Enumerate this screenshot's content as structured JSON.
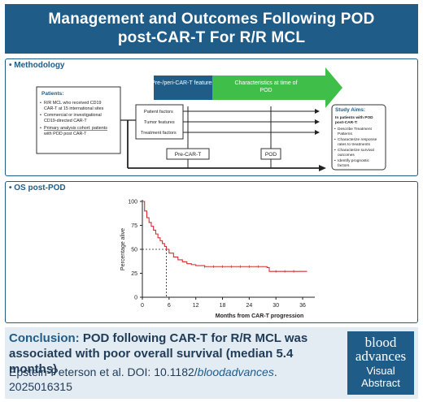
{
  "header": {
    "line1": "Management and Outcomes Following POD",
    "line2": "post-CAR-T For R/R MCL"
  },
  "methodology": {
    "title": "• Methodology",
    "patients_title": "Patients:",
    "patients_items": [
      "R/R MCL who received CD19",
      "CAR-T at 15 international sites",
      "Commercial or investigational",
      "CD19-directed CAR-T",
      "Primary analysis cohort: patients",
      "with POD post CAR-T"
    ],
    "arrow1": "Pre-/peri-CAR-T features",
    "arrow2_line1": "Characteristics at time of",
    "arrow2_line2": "POD",
    "factors": [
      "Patient factors",
      "Tumor features",
      "Treatment factors"
    ],
    "timepoint1": "Pre-CAR-T",
    "timepoint2": "POD",
    "aims_title": "Study Aims:",
    "aims_sub1": "In patients with POD",
    "aims_sub2": "post-CAR-T:",
    "aims_items": [
      "Describe Treatment",
      "Patterns",
      "Characterize response",
      "rates to treatments",
      "Characterize survival",
      "outcomes",
      "Identify prognostic",
      "factors"
    ]
  },
  "os": {
    "title": "• OS post-POD"
  },
  "chart_data": {
    "type": "line",
    "title": "",
    "xlabel": "Months from CAR-T progression",
    "ylabel": "Percentage alive",
    "xlim": [
      0,
      38
    ],
    "ylim": [
      0,
      100
    ],
    "x_ticks": [
      0,
      6,
      12,
      18,
      24,
      30,
      36
    ],
    "y_ticks": [
      0,
      25,
      50,
      75,
      100
    ],
    "series": [
      {
        "color": "#d32f2f",
        "x": [
          0,
          0.5,
          1,
          1.5,
          2,
          2.5,
          3,
          3.5,
          4,
          4.5,
          5,
          5.4,
          6,
          7,
          8,
          9,
          10,
          11,
          12,
          14,
          16,
          18,
          22,
          26,
          28,
          28.5,
          37
        ],
        "y": [
          100,
          90,
          83,
          78,
          74,
          70,
          66,
          62,
          59,
          56,
          53,
          50,
          46,
          42,
          39,
          37,
          35,
          34,
          33,
          32,
          32,
          32,
          32,
          32,
          31,
          27,
          27
        ]
      }
    ],
    "median": {
      "x": 5.4,
      "y": 50
    }
  },
  "conclusion": {
    "label": "Conclusion:",
    "text": "POD following CAR-T for R/R MCL was associated with poor overall survival (median 5.4 months)",
    "cite_plain": "Epstein-Peterson et al. DOI: 10.1182/",
    "cite_journal": "bloodadvances",
    "cite_tail": ".",
    "cite_line2": "2025016315"
  },
  "logo": {
    "line1": "blood",
    "line2": "advances",
    "line3": "Visual",
    "line4": "Abstract"
  }
}
